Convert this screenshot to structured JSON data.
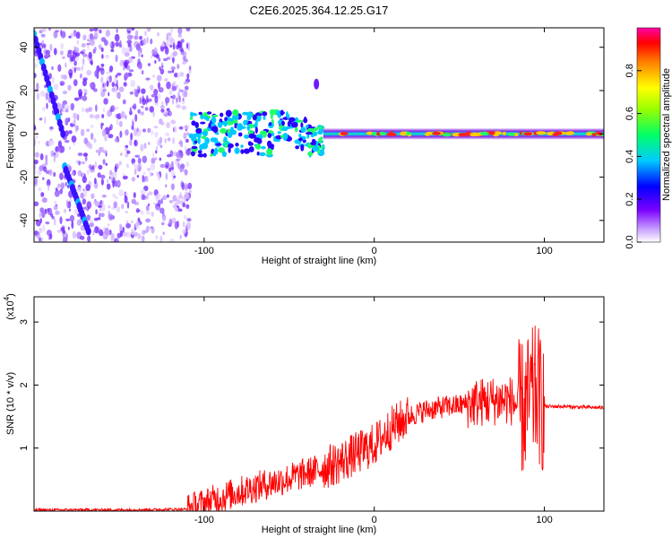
{
  "title": "C2E6.2025.364.12.25.G17",
  "colors": {
    "snr_line": "#ff0000",
    "axis": "#000000",
    "background": "#ffffff"
  },
  "chart_data": [
    {
      "type": "heatmap",
      "title": "C2E6.2025.364.12.25.G17",
      "xlabel": "Height of straight line (km)",
      "ylabel": "Frequency (Hz)",
      "xlim": [
        -200,
        135
      ],
      "ylim": [
        -50,
        49
      ],
      "xticks": [
        -100,
        0,
        100
      ],
      "xtick_labels": [
        "-100",
        "0",
        "100"
      ],
      "yticks": [
        -40,
        -20,
        0,
        20,
        40
      ],
      "ytick_labels": [
        "-40",
        "-20",
        "0",
        "20",
        "40"
      ],
      "colorbar": {
        "label": "Normalized spectral amplitude",
        "range": [
          0,
          1
        ],
        "ticks": [
          0,
          0.2,
          0.4,
          0.6,
          0.8
        ],
        "tick_labels": [
          "0.0",
          "0.2",
          "0.4",
          "0.6",
          "0.8"
        ],
        "colormap": "rainbow (violet→blue→cyan→green→yellow→red→magenta)"
      },
      "features": {
        "noise_region_x": [
          -200,
          -108
        ],
        "main_trace_frequency_hz": 0,
        "diagonal_traces": [
          {
            "x_start": -200,
            "y_start": 46,
            "x_end": -183,
            "y_end": 0
          },
          {
            "x_start": -182,
            "y_start": -15,
            "x_end": -168,
            "y_end": -45
          }
        ],
        "isolated_blob": {
          "x": -34,
          "y": 23
        }
      }
    },
    {
      "type": "line",
      "title": "",
      "xlabel": "Height of straight line (km)",
      "ylabel": "SNR (10 * v/v)",
      "y_multiplier_label": "(x10",
      "y_multiplier_exp": "4",
      "y_multiplier_close": ")",
      "xlim": [
        -200,
        135
      ],
      "ylim": [
        0,
        3.4
      ],
      "xticks": [
        -100,
        0,
        100
      ],
      "xtick_labels": [
        "-100",
        "0",
        "100"
      ],
      "yticks": [
        1,
        2,
        3
      ],
      "ytick_labels": [
        "1",
        "2",
        "3"
      ],
      "series": [
        {
          "name": "SNR",
          "x": [
            -200,
            -150,
            -110,
            -100,
            -90,
            -80,
            -70,
            -60,
            -50,
            -40,
            -30,
            -20,
            -10,
            0,
            10,
            20,
            30,
            40,
            50,
            60,
            70,
            80,
            88,
            92,
            96,
            98,
            100,
            110,
            120,
            135
          ],
          "values": [
            0.02,
            0.02,
            0.03,
            0.12,
            0.22,
            0.3,
            0.38,
            0.45,
            0.52,
            0.6,
            0.68,
            0.78,
            0.92,
            1.05,
            1.32,
            1.5,
            1.6,
            1.65,
            1.68,
            1.72,
            1.75,
            1.76,
            1.6,
            1.8,
            1.9,
            1.7,
            1.66,
            1.66,
            1.65,
            1.64
          ]
        }
      ]
    }
  ]
}
